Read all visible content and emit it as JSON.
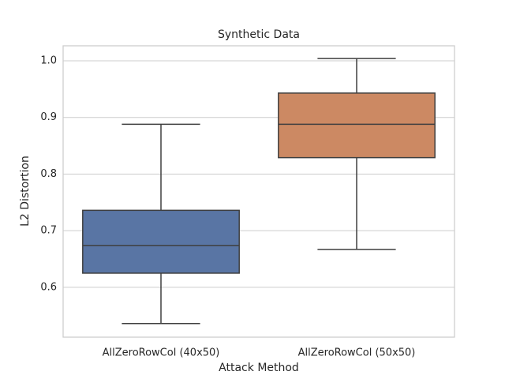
{
  "chart_data": {
    "type": "box",
    "title": "Synthetic Data",
    "x_label": "Attack Method",
    "y_label": "L2 Distortion",
    "categories": [
      "AllZeroRowCol (40x50)",
      "AllZeroRowCol (50x50)"
    ],
    "colors": [
      "#5975a4",
      "#cc8963"
    ],
    "boxes": [
      {
        "low": 0.536,
        "q1": 0.625,
        "median": 0.674,
        "q3": 0.736,
        "high": 0.888
      },
      {
        "low": 0.667,
        "q1": 0.829,
        "median": 0.888,
        "q3": 0.943,
        "high": 1.004
      }
    ],
    "ylim": [
      0.512,
      1.0265
    ],
    "yticks": [
      0.6,
      0.7,
      0.8,
      0.9,
      {
        "value": 1,
        "label": "1.0"
      }
    ],
    "grid": true
  }
}
